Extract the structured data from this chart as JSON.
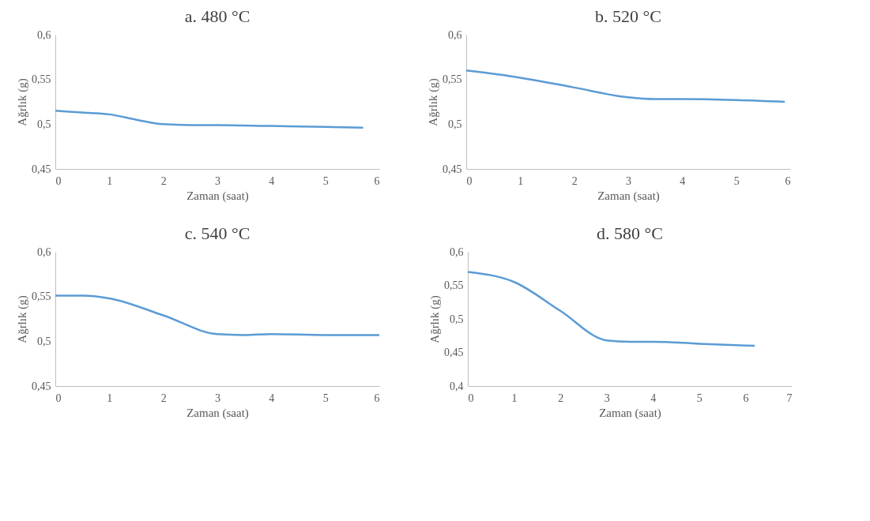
{
  "chart_data": [
    {
      "type": "line",
      "title": "a. 480 °C",
      "xlabel": "Zaman (saat)",
      "ylabel": "Ağrlık (g)",
      "grid": false,
      "series": [
        {
          "color": "#5b9bd5",
          "x": [
            0,
            0.5,
            1,
            1.5,
            2,
            2.5,
            3,
            4,
            5,
            5.7
          ],
          "values": [
            0.515,
            0.513,
            0.511,
            0.505,
            0.5,
            0.499,
            0.499,
            0.498,
            0.497,
            0.496
          ]
        }
      ],
      "xlim": [
        0,
        6
      ],
      "xticks": [
        0,
        1,
        2,
        3,
        4,
        5,
        6
      ],
      "ylim": [
        0.45,
        0.6
      ],
      "yticks": [
        {
          "value": 0.45,
          "label": "0,45"
        },
        {
          "value": 0.5,
          "label": "0,5"
        },
        {
          "value": 0.55,
          "label": "0,55"
        },
        {
          "value": 0.6,
          "label": "0,6"
        }
      ]
    },
    {
      "type": "line",
      "title": "b. 520 °C",
      "xlabel": "Zaman (saat)",
      "ylabel": "Ağrlık (g)",
      "grid": false,
      "series": [
        {
          "color": "#5b9bd5",
          "x": [
            0,
            1,
            2,
            3,
            3.5,
            4,
            5,
            5.9
          ],
          "values": [
            0.56,
            0.552,
            0.541,
            0.53,
            0.528,
            0.528,
            0.527,
            0.525
          ]
        }
      ],
      "xlim": [
        0,
        6
      ],
      "xticks": [
        0,
        1,
        2,
        3,
        4,
        5,
        6
      ],
      "ylim": [
        0.45,
        0.6
      ],
      "yticks": [
        {
          "value": 0.45,
          "label": "0,45"
        },
        {
          "value": 0.5,
          "label": "0,5"
        },
        {
          "value": 0.55,
          "label": "0,55"
        },
        {
          "value": 0.6,
          "label": "0,6"
        }
      ]
    },
    {
      "type": "line",
      "title": "c. 540 °C",
      "xlabel": "Zaman (saat)",
      "ylabel": "Ağrlık (g)",
      "grid": false,
      "series": [
        {
          "color": "#5b9bd5",
          "x": [
            0,
            0.5,
            1,
            2,
            3,
            3.5,
            4,
            5,
            6
          ],
          "values": [
            0.551,
            0.551,
            0.548,
            0.529,
            0.508,
            0.507,
            0.508,
            0.507,
            0.507
          ]
        }
      ],
      "xlim": [
        0,
        6
      ],
      "xticks": [
        0,
        1,
        2,
        3,
        4,
        5,
        6
      ],
      "ylim": [
        0.45,
        0.6
      ],
      "yticks": [
        {
          "value": 0.45,
          "label": "0,45"
        },
        {
          "value": 0.5,
          "label": "0,5"
        },
        {
          "value": 0.55,
          "label": "0,55"
        },
        {
          "value": 0.6,
          "label": "0,6"
        }
      ]
    },
    {
      "type": "line",
      "title": "d. 580 °C",
      "xlabel": "Zaman (saat)",
      "ylabel": "Ağrlık (g)",
      "grid": false,
      "series": [
        {
          "color": "#5b9bd5",
          "x": [
            0,
            1,
            2,
            3,
            3.5,
            4,
            5,
            6.2
          ],
          "values": [
            0.57,
            0.555,
            0.512,
            0.468,
            0.466,
            0.466,
            0.463,
            0.46
          ]
        }
      ],
      "xlim": [
        0,
        7
      ],
      "xticks": [
        0,
        1,
        2,
        3,
        4,
        5,
        6,
        7
      ],
      "ylim": [
        0.4,
        0.6
      ],
      "yticks": [
        {
          "value": 0.4,
          "label": "0,4"
        },
        {
          "value": 0.45,
          "label": "0,45"
        },
        {
          "value": 0.5,
          "label": "0,5"
        },
        {
          "value": 0.55,
          "label": "0,55"
        },
        {
          "value": 0.6,
          "label": "0,6"
        }
      ]
    }
  ]
}
